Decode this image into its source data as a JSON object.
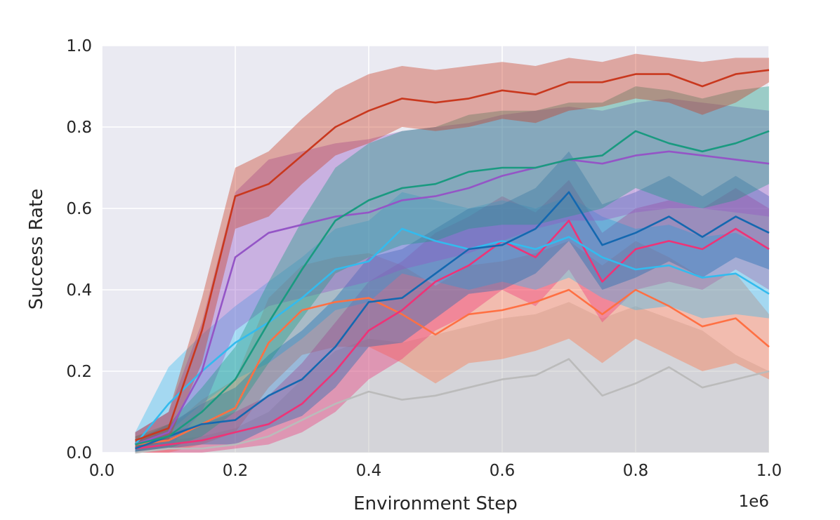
{
  "chart_data": {
    "type": "line",
    "title": "",
    "xlabel": "Environment Step",
    "ylabel": "Success Rate",
    "x_multiplier_label": "1e6",
    "xlim": [
      0.0,
      1.0
    ],
    "ylim": [
      0.0,
      1.0
    ],
    "xticks": [
      "0.0",
      "0.2",
      "0.4",
      "0.6",
      "0.8",
      "1.0"
    ],
    "yticks": [
      "0.0",
      "0.2",
      "0.4",
      "0.6",
      "0.8",
      "1.0"
    ],
    "grid": true,
    "legend": "none",
    "x": [
      0.05,
      0.1,
      0.15,
      0.2,
      0.25,
      0.3,
      0.35,
      0.4,
      0.45,
      0.5,
      0.55,
      0.6,
      0.65,
      0.7,
      0.75,
      0.8,
      0.85,
      0.9,
      0.95,
      1.0
    ],
    "series": [
      {
        "name": "red",
        "color": "#c9381e",
        "values": [
          0.03,
          0.06,
          0.3,
          0.63,
          0.66,
          0.73,
          0.8,
          0.84,
          0.87,
          0.86,
          0.87,
          0.89,
          0.88,
          0.91,
          0.91,
          0.93,
          0.93,
          0.9,
          0.93,
          0.94
        ],
        "lower": [
          0.01,
          0.03,
          0.22,
          0.55,
          0.58,
          0.66,
          0.73,
          0.76,
          0.8,
          0.79,
          0.8,
          0.82,
          0.81,
          0.84,
          0.85,
          0.87,
          0.86,
          0.83,
          0.86,
          0.91
        ],
        "upper": [
          0.05,
          0.1,
          0.38,
          0.7,
          0.74,
          0.82,
          0.89,
          0.93,
          0.95,
          0.94,
          0.95,
          0.96,
          0.95,
          0.97,
          0.96,
          0.98,
          0.97,
          0.96,
          0.97,
          0.97
        ]
      },
      {
        "name": "teal",
        "color": "#1a9a80",
        "values": [
          0.02,
          0.04,
          0.1,
          0.18,
          0.32,
          0.45,
          0.57,
          0.62,
          0.65,
          0.66,
          0.69,
          0.7,
          0.7,
          0.72,
          0.73,
          0.79,
          0.76,
          0.74,
          0.76,
          0.79
        ],
        "lower": [
          0.0,
          0.01,
          0.04,
          0.1,
          0.22,
          0.33,
          0.44,
          0.48,
          0.51,
          0.52,
          0.55,
          0.56,
          0.56,
          0.58,
          0.6,
          0.65,
          0.62,
          0.6,
          0.62,
          0.66
        ],
        "upper": [
          0.04,
          0.07,
          0.16,
          0.26,
          0.42,
          0.57,
          0.7,
          0.76,
          0.79,
          0.8,
          0.83,
          0.84,
          0.84,
          0.86,
          0.86,
          0.9,
          0.89,
          0.87,
          0.89,
          0.9
        ]
      },
      {
        "name": "purple",
        "color": "#9455c6",
        "values": [
          0.02,
          0.05,
          0.2,
          0.48,
          0.54,
          0.56,
          0.58,
          0.59,
          0.62,
          0.63,
          0.65,
          0.68,
          0.7,
          0.72,
          0.71,
          0.73,
          0.74,
          0.73,
          0.72,
          0.71
        ],
        "lower": [
          0.0,
          0.01,
          0.1,
          0.3,
          0.36,
          0.38,
          0.4,
          0.42,
          0.45,
          0.47,
          0.49,
          0.52,
          0.55,
          0.57,
          0.57,
          0.59,
          0.6,
          0.6,
          0.59,
          0.58
        ],
        "upper": [
          0.05,
          0.1,
          0.32,
          0.64,
          0.72,
          0.74,
          0.76,
          0.77,
          0.79,
          0.8,
          0.81,
          0.83,
          0.84,
          0.85,
          0.84,
          0.86,
          0.87,
          0.86,
          0.85,
          0.84
        ]
      },
      {
        "name": "dark-blue",
        "color": "#1468b0",
        "values": [
          0.01,
          0.04,
          0.07,
          0.08,
          0.14,
          0.18,
          0.26,
          0.37,
          0.38,
          0.44,
          0.5,
          0.51,
          0.55,
          0.64,
          0.51,
          0.54,
          0.58,
          0.53,
          0.58,
          0.54
        ],
        "lower": [
          0.0,
          0.01,
          0.02,
          0.02,
          0.06,
          0.09,
          0.16,
          0.26,
          0.27,
          0.33,
          0.39,
          0.4,
          0.44,
          0.52,
          0.4,
          0.43,
          0.47,
          0.43,
          0.48,
          0.45
        ],
        "upper": [
          0.03,
          0.07,
          0.12,
          0.16,
          0.24,
          0.3,
          0.38,
          0.48,
          0.5,
          0.55,
          0.6,
          0.61,
          0.65,
          0.74,
          0.61,
          0.64,
          0.68,
          0.63,
          0.68,
          0.63
        ]
      },
      {
        "name": "sky-blue",
        "color": "#33bbee",
        "values": [
          0.02,
          0.12,
          0.2,
          0.27,
          0.32,
          0.38,
          0.45,
          0.47,
          0.55,
          0.52,
          0.5,
          0.52,
          0.5,
          0.53,
          0.48,
          0.45,
          0.46,
          0.43,
          0.44,
          0.39
        ],
        "lower": [
          0.0,
          0.05,
          0.12,
          0.18,
          0.22,
          0.28,
          0.35,
          0.37,
          0.44,
          0.42,
          0.4,
          0.42,
          0.4,
          0.43,
          0.38,
          0.35,
          0.36,
          0.33,
          0.34,
          0.33
        ],
        "upper": [
          0.05,
          0.21,
          0.29,
          0.36,
          0.42,
          0.48,
          0.55,
          0.57,
          0.64,
          0.62,
          0.6,
          0.62,
          0.6,
          0.63,
          0.58,
          0.55,
          0.56,
          0.53,
          0.54,
          0.5
        ]
      },
      {
        "name": "pink",
        "color": "#ee3377",
        "values": [
          0.01,
          0.02,
          0.03,
          0.05,
          0.07,
          0.12,
          0.2,
          0.3,
          0.35,
          0.42,
          0.46,
          0.52,
          0.48,
          0.57,
          0.42,
          0.5,
          0.52,
          0.5,
          0.55,
          0.5
        ],
        "lower": [
          0.0,
          0.0,
          0.0,
          0.01,
          0.02,
          0.05,
          0.1,
          0.18,
          0.23,
          0.3,
          0.34,
          0.4,
          0.36,
          0.45,
          0.32,
          0.4,
          0.42,
          0.4,
          0.45,
          0.4
        ],
        "upper": [
          0.03,
          0.05,
          0.07,
          0.1,
          0.14,
          0.22,
          0.32,
          0.42,
          0.47,
          0.54,
          0.58,
          0.63,
          0.59,
          0.67,
          0.54,
          0.6,
          0.62,
          0.6,
          0.65,
          0.6
        ]
      },
      {
        "name": "orange",
        "color": "#ff7043",
        "values": [
          0.02,
          0.03,
          0.07,
          0.11,
          0.27,
          0.35,
          0.37,
          0.38,
          0.34,
          0.29,
          0.34,
          0.35,
          0.37,
          0.4,
          0.34,
          0.4,
          0.36,
          0.31,
          0.33,
          0.26
        ],
        "lower": [
          0.0,
          0.0,
          0.02,
          0.05,
          0.16,
          0.24,
          0.26,
          0.26,
          0.22,
          0.17,
          0.22,
          0.23,
          0.25,
          0.28,
          0.22,
          0.28,
          0.24,
          0.2,
          0.22,
          0.18
        ],
        "upper": [
          0.04,
          0.06,
          0.13,
          0.18,
          0.38,
          0.46,
          0.48,
          0.49,
          0.46,
          0.41,
          0.46,
          0.47,
          0.49,
          0.52,
          0.46,
          0.52,
          0.48,
          0.43,
          0.44,
          0.34
        ]
      },
      {
        "name": "grey",
        "color": "#bbbbbb",
        "values": [
          0.0,
          0.01,
          0.01,
          0.02,
          0.04,
          0.08,
          0.12,
          0.15,
          0.13,
          0.14,
          0.16,
          0.18,
          0.19,
          0.23,
          0.14,
          0.17,
          0.21,
          0.16,
          0.18,
          0.2
        ],
        "lower": [
          0.0,
          0.0,
          0.0,
          0.0,
          0.0,
          0.0,
          0.0,
          0.0,
          0.0,
          0.0,
          0.0,
          0.0,
          0.0,
          0.0,
          0.0,
          0.0,
          0.0,
          0.0,
          0.0,
          0.0
        ],
        "upper": [
          0.02,
          0.03,
          0.04,
          0.06,
          0.1,
          0.18,
          0.25,
          0.28,
          0.27,
          0.29,
          0.31,
          0.33,
          0.34,
          0.37,
          0.33,
          0.36,
          0.33,
          0.3,
          0.24,
          0.2
        ]
      }
    ]
  }
}
